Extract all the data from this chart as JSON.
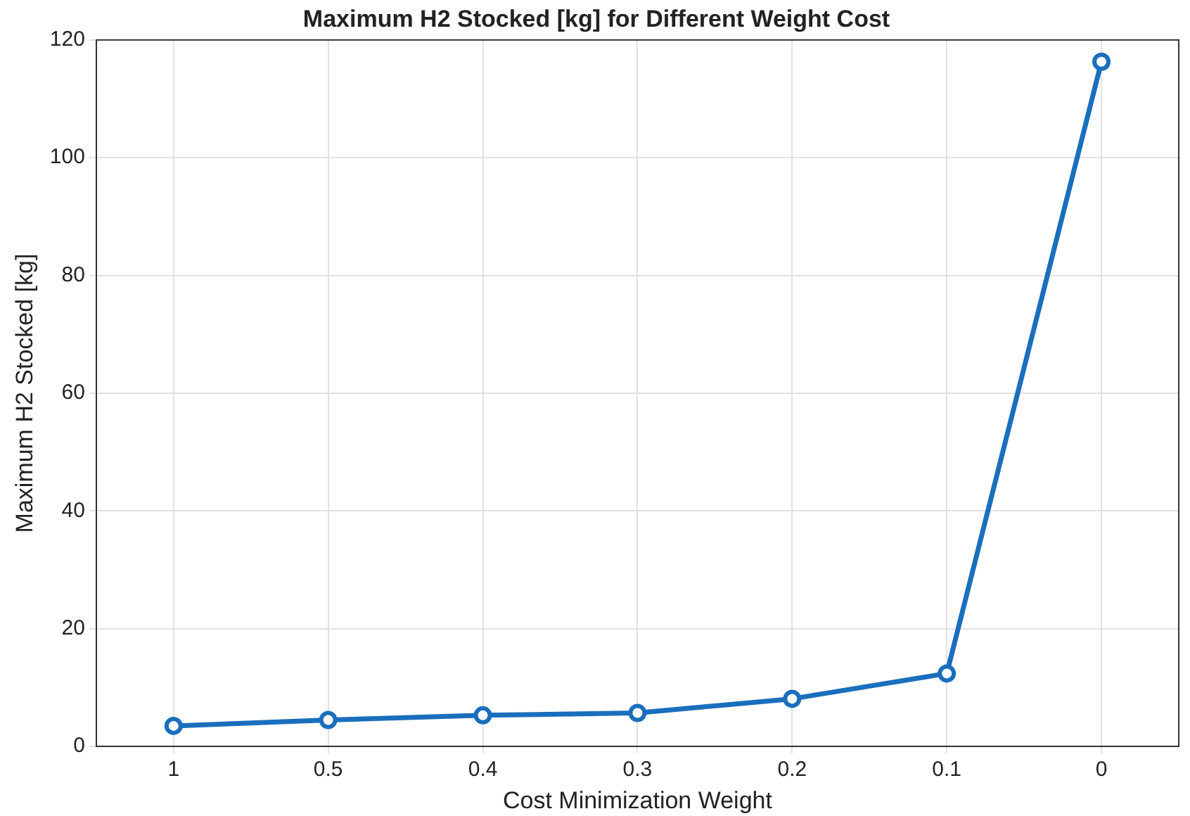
{
  "chart_data": {
    "type": "line",
    "title": "Maximum H2 Stocked [kg] for Different Weight Cost",
    "xlabel": "Cost Minimization Weight",
    "ylabel": "Maximum H2 Stocked [kg]",
    "categories": [
      "1",
      "0.5",
      "0.4",
      "0.3",
      "0.2",
      "0.1",
      "0"
    ],
    "series": [
      {
        "color": "#1a6fbd",
        "values": [
          3.5,
          4.5,
          5.3,
          5.7,
          8.1,
          12.4,
          116.3
        ]
      }
    ],
    "ylim": [
      0,
      120
    ],
    "yticks": [
      0,
      20,
      40,
      60,
      80,
      100,
      120
    ],
    "grid": true,
    "marker": "circle",
    "line_style": "solid"
  }
}
